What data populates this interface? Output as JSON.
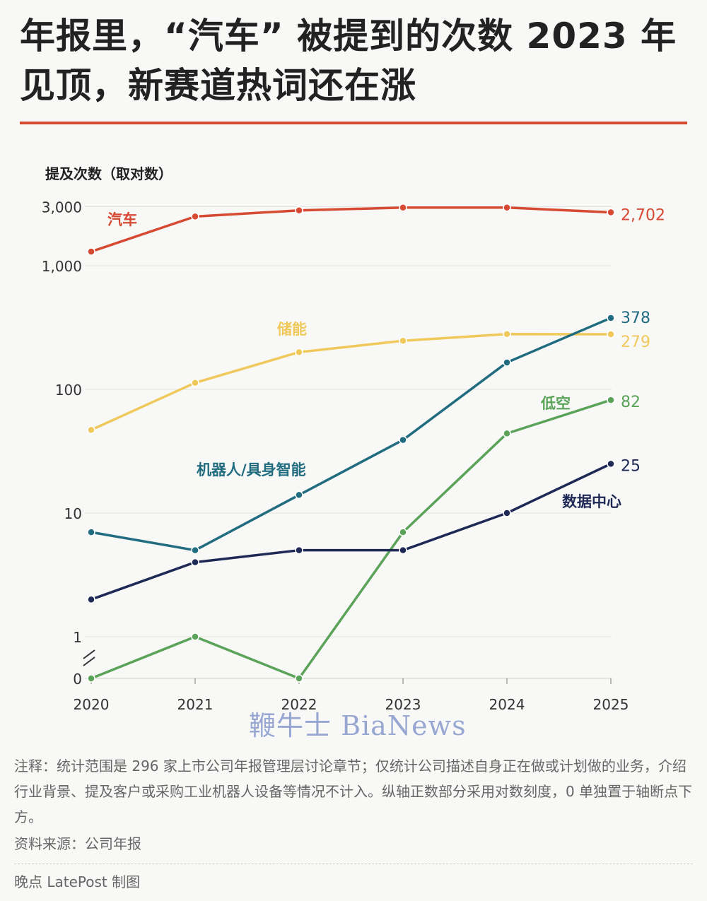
{
  "title": "年报里，“汽车” 被提到的次数 2023 年见顶，新赛道热词还在涨",
  "watermark": "鞭牛士 BiaNews",
  "footer": {
    "note": "注释：统计范围是 296 家上市公司年报管理层讨论章节；仅统计公司描述自身正在做或计划做的业务，介绍行业背景、提及客户或采购工业机器人设备等情况不计入。纵轴正数部分采用对数刻度，0 单独置于轴断点下方。",
    "source": "资料来源：公司年报",
    "credit": "晚点 LatePost 制图"
  },
  "colors": {
    "title_rule": "#d64a32",
    "汽车": "#d64a32",
    "储能": "#f0c95c",
    "机器人/具身智能": "#226c80",
    "低空": "#5aa358",
    "数据中心": "#1e2a55"
  },
  "chart_data": {
    "type": "line",
    "ylabel": "提及次数（取对数）",
    "y_scale": "log",
    "y_axis_break": true,
    "y_ticks": [
      "3,000",
      "1,000",
      "100",
      "10",
      "1",
      "0"
    ],
    "x": [
      "2020",
      "2021",
      "2022",
      "2023",
      "2024",
      "2025"
    ],
    "grid": true,
    "series": [
      {
        "name": "汽车",
        "values": [
          1300,
          2500,
          2800,
          2950,
          2950,
          2702
        ],
        "end_label": "2,702"
      },
      {
        "name": "储能",
        "values": [
          47,
          113,
          200,
          247,
          280,
          279
        ],
        "end_label": "279"
      },
      {
        "name": "机器人/具身智能",
        "values": [
          7,
          5,
          14,
          39,
          165,
          378
        ],
        "end_label": "378"
      },
      {
        "name": "低空",
        "values": [
          0,
          1,
          0,
          7,
          44,
          82
        ],
        "end_label": "82"
      },
      {
        "name": "数据中心",
        "values": [
          2,
          4,
          5,
          5,
          10,
          25
        ],
        "end_label": "25"
      }
    ]
  }
}
